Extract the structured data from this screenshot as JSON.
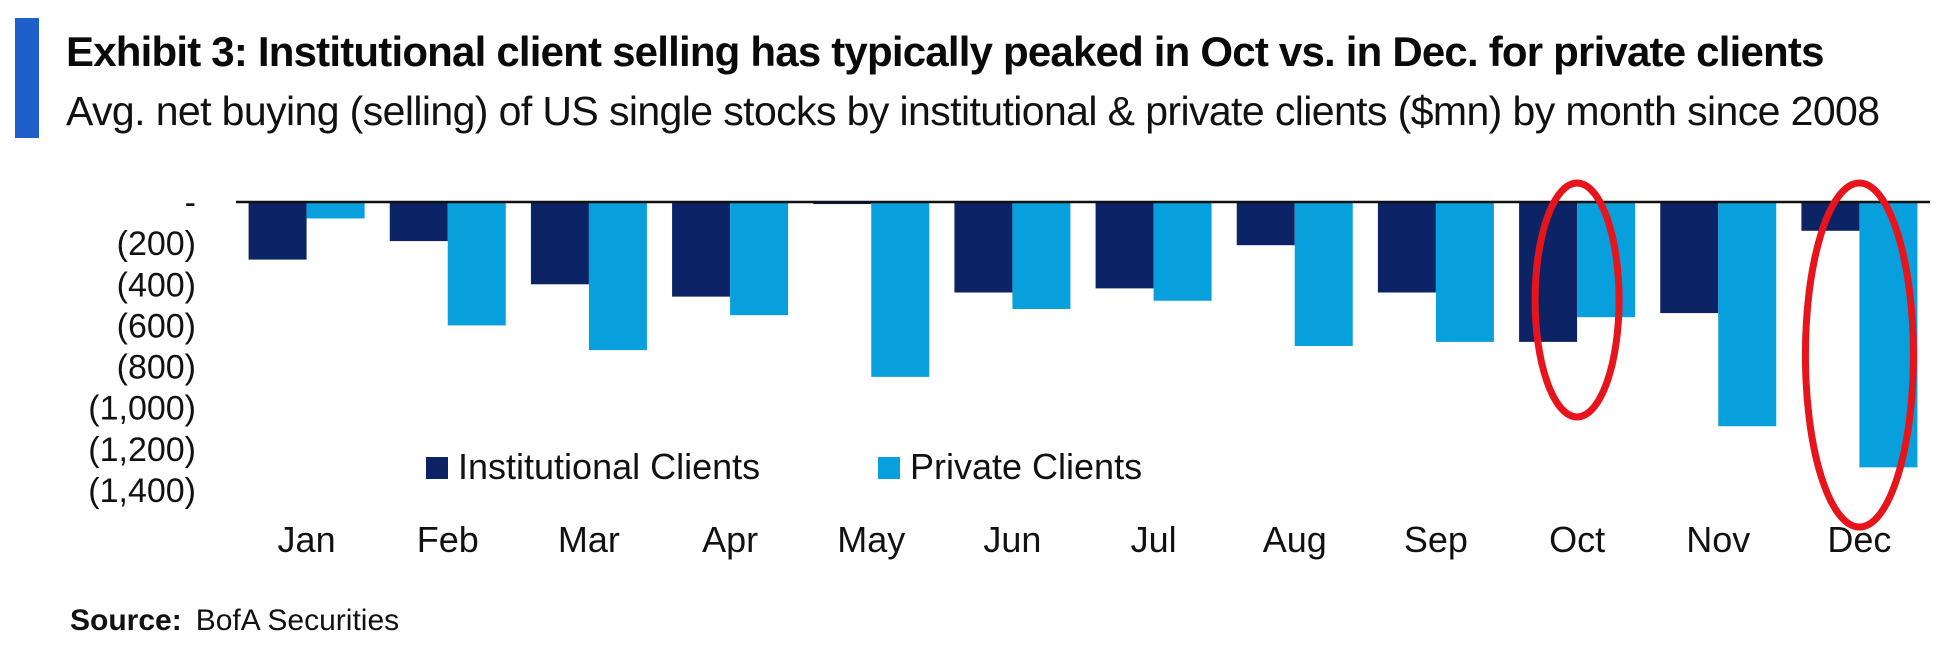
{
  "header": {
    "title": "Exhibit 3: Institutional client selling has typically peaked in Oct vs. in Dec. for private clients",
    "subtitle": "Avg. net buying (selling) of US single stocks by institutional & private clients ($mn) by month since 2008"
  },
  "footer": {
    "source_label": "Source:",
    "source_text": "BofA Securities"
  },
  "colors": {
    "accent": "#1f5fc9",
    "institutional": "#0c2466",
    "private": "#079fdc",
    "highlight": "#e8141b",
    "baseline": "#111111"
  },
  "chart_data": {
    "type": "bar",
    "title": "",
    "xlabel": "",
    "ylabel": "",
    "categories": [
      "Jan",
      "Feb",
      "Mar",
      "Apr",
      "May",
      "Jun",
      "Jul",
      "Aug",
      "Sep",
      "Oct",
      "Nov",
      "Dec"
    ],
    "series": [
      {
        "name": "Institutional Clients",
        "values": [
          -280,
          -190,
          -400,
          -460,
          -10,
          -440,
          -420,
          -210,
          -440,
          -680,
          -540,
          -140
        ]
      },
      {
        "name": "Private Clients",
        "values": [
          -80,
          -600,
          -720,
          -550,
          -850,
          -520,
          -480,
          -700,
          -680,
          -560,
          -1090,
          -1290
        ]
      }
    ],
    "ylim": [
      -1400,
      0
    ],
    "yticks": [
      0,
      -200,
      -400,
      -600,
      -800,
      -1000,
      -1200,
      -1400
    ],
    "ytick_labels": [
      "-",
      "(200)",
      "(400)",
      "(600)",
      "(800)",
      "(1,000)",
      "(1,200)",
      "(1,400)"
    ],
    "legend_position": "bottom-center",
    "grid": false,
    "highlighted_categories": [
      "Oct",
      "Dec"
    ]
  }
}
